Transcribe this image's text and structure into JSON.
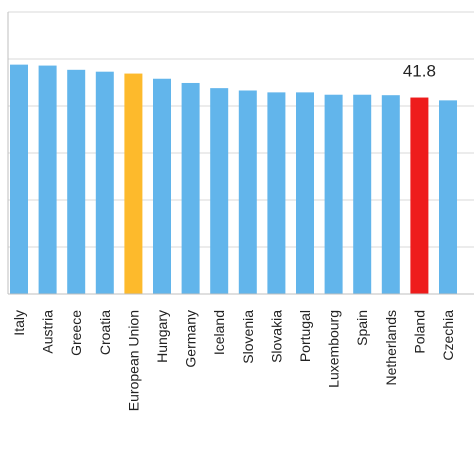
{
  "chart_data": {
    "type": "bar",
    "categories": [
      "Italy",
      "Austria",
      "Greece",
      "Croatia",
      "European Union",
      "Hungary",
      "Germany",
      "Iceland",
      "Slovenia",
      "Slovakia",
      "Portugal",
      "Luxembourg",
      "Spain",
      "Netherlands",
      "Poland",
      "Czechia"
    ],
    "values": [
      48.8,
      48.6,
      47.7,
      47.3,
      46.9,
      45.8,
      44.9,
      43.8,
      43.3,
      42.9,
      42.9,
      42.4,
      42.4,
      42.3,
      41.8,
      41.2
    ],
    "data_labels": [
      {
        "category": "Poland",
        "text": "41.8"
      }
    ],
    "ylim": [
      0,
      60
    ],
    "grid": true,
    "colors": {
      "default_bar": "#62B5EB",
      "European Union": "#FDBA2C",
      "Poland": "#EE1C1C",
      "gridline": "#D9D9D9",
      "axis": "#BFBFBF"
    }
  }
}
